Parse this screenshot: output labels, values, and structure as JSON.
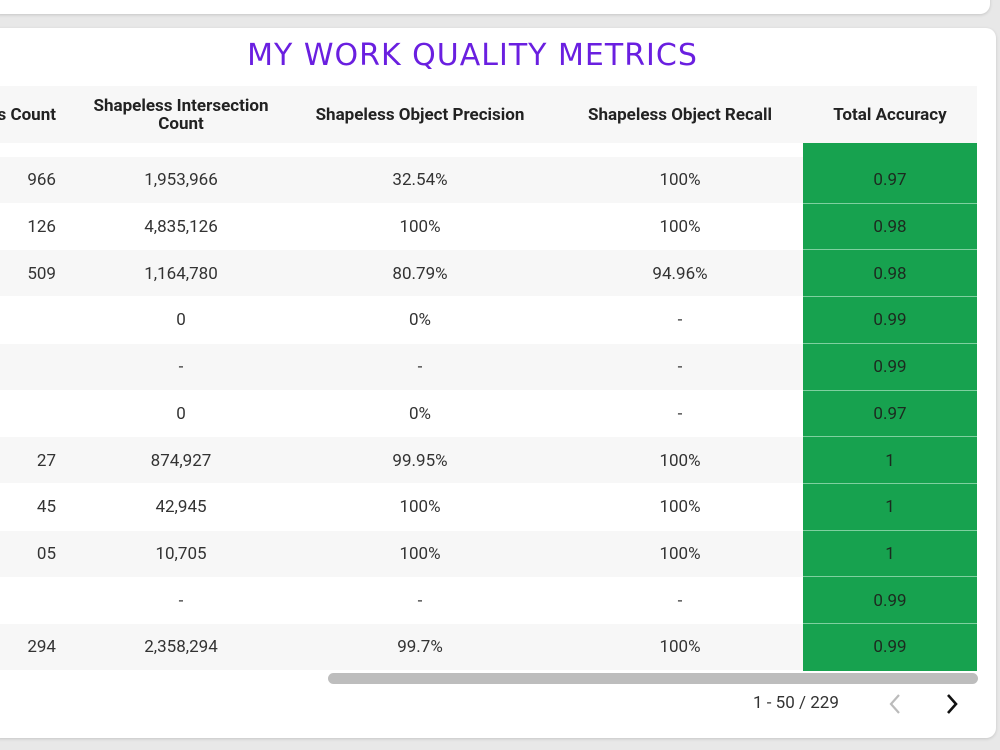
{
  "header": {
    "title": "MY WORK QUALITY METRICS"
  },
  "table": {
    "headers": [
      "ess Count",
      "Shapeless Intersection Count",
      "Shapeless Object Precision",
      "Shapeless Object Recall",
      "Total Accuracy"
    ],
    "rows": [
      [
        "966",
        "1,953,966",
        "32.54%",
        "100%",
        "0.97"
      ],
      [
        "126",
        "4,835,126",
        "100%",
        "100%",
        "0.98"
      ],
      [
        "509",
        "1,164,780",
        "80.79%",
        "94.96%",
        "0.98"
      ],
      [
        null,
        "0",
        "0%",
        "-",
        "0.99"
      ],
      [
        null,
        "-",
        "-",
        "-",
        "0.99"
      ],
      [
        null,
        "0",
        "0%",
        "-",
        "0.97"
      ],
      [
        "27",
        "874,927",
        "99.95%",
        "100%",
        "1"
      ],
      [
        "45",
        "42,945",
        "100%",
        "100%",
        "1"
      ],
      [
        "05",
        "10,705",
        "100%",
        "100%",
        "1"
      ],
      [
        null,
        "-",
        "-",
        "-",
        "0.99"
      ],
      [
        "294",
        "2,358,294",
        "99.7%",
        "100%",
        "0.99"
      ]
    ]
  },
  "pagination": {
    "range": "1 - 50 / 229"
  }
}
